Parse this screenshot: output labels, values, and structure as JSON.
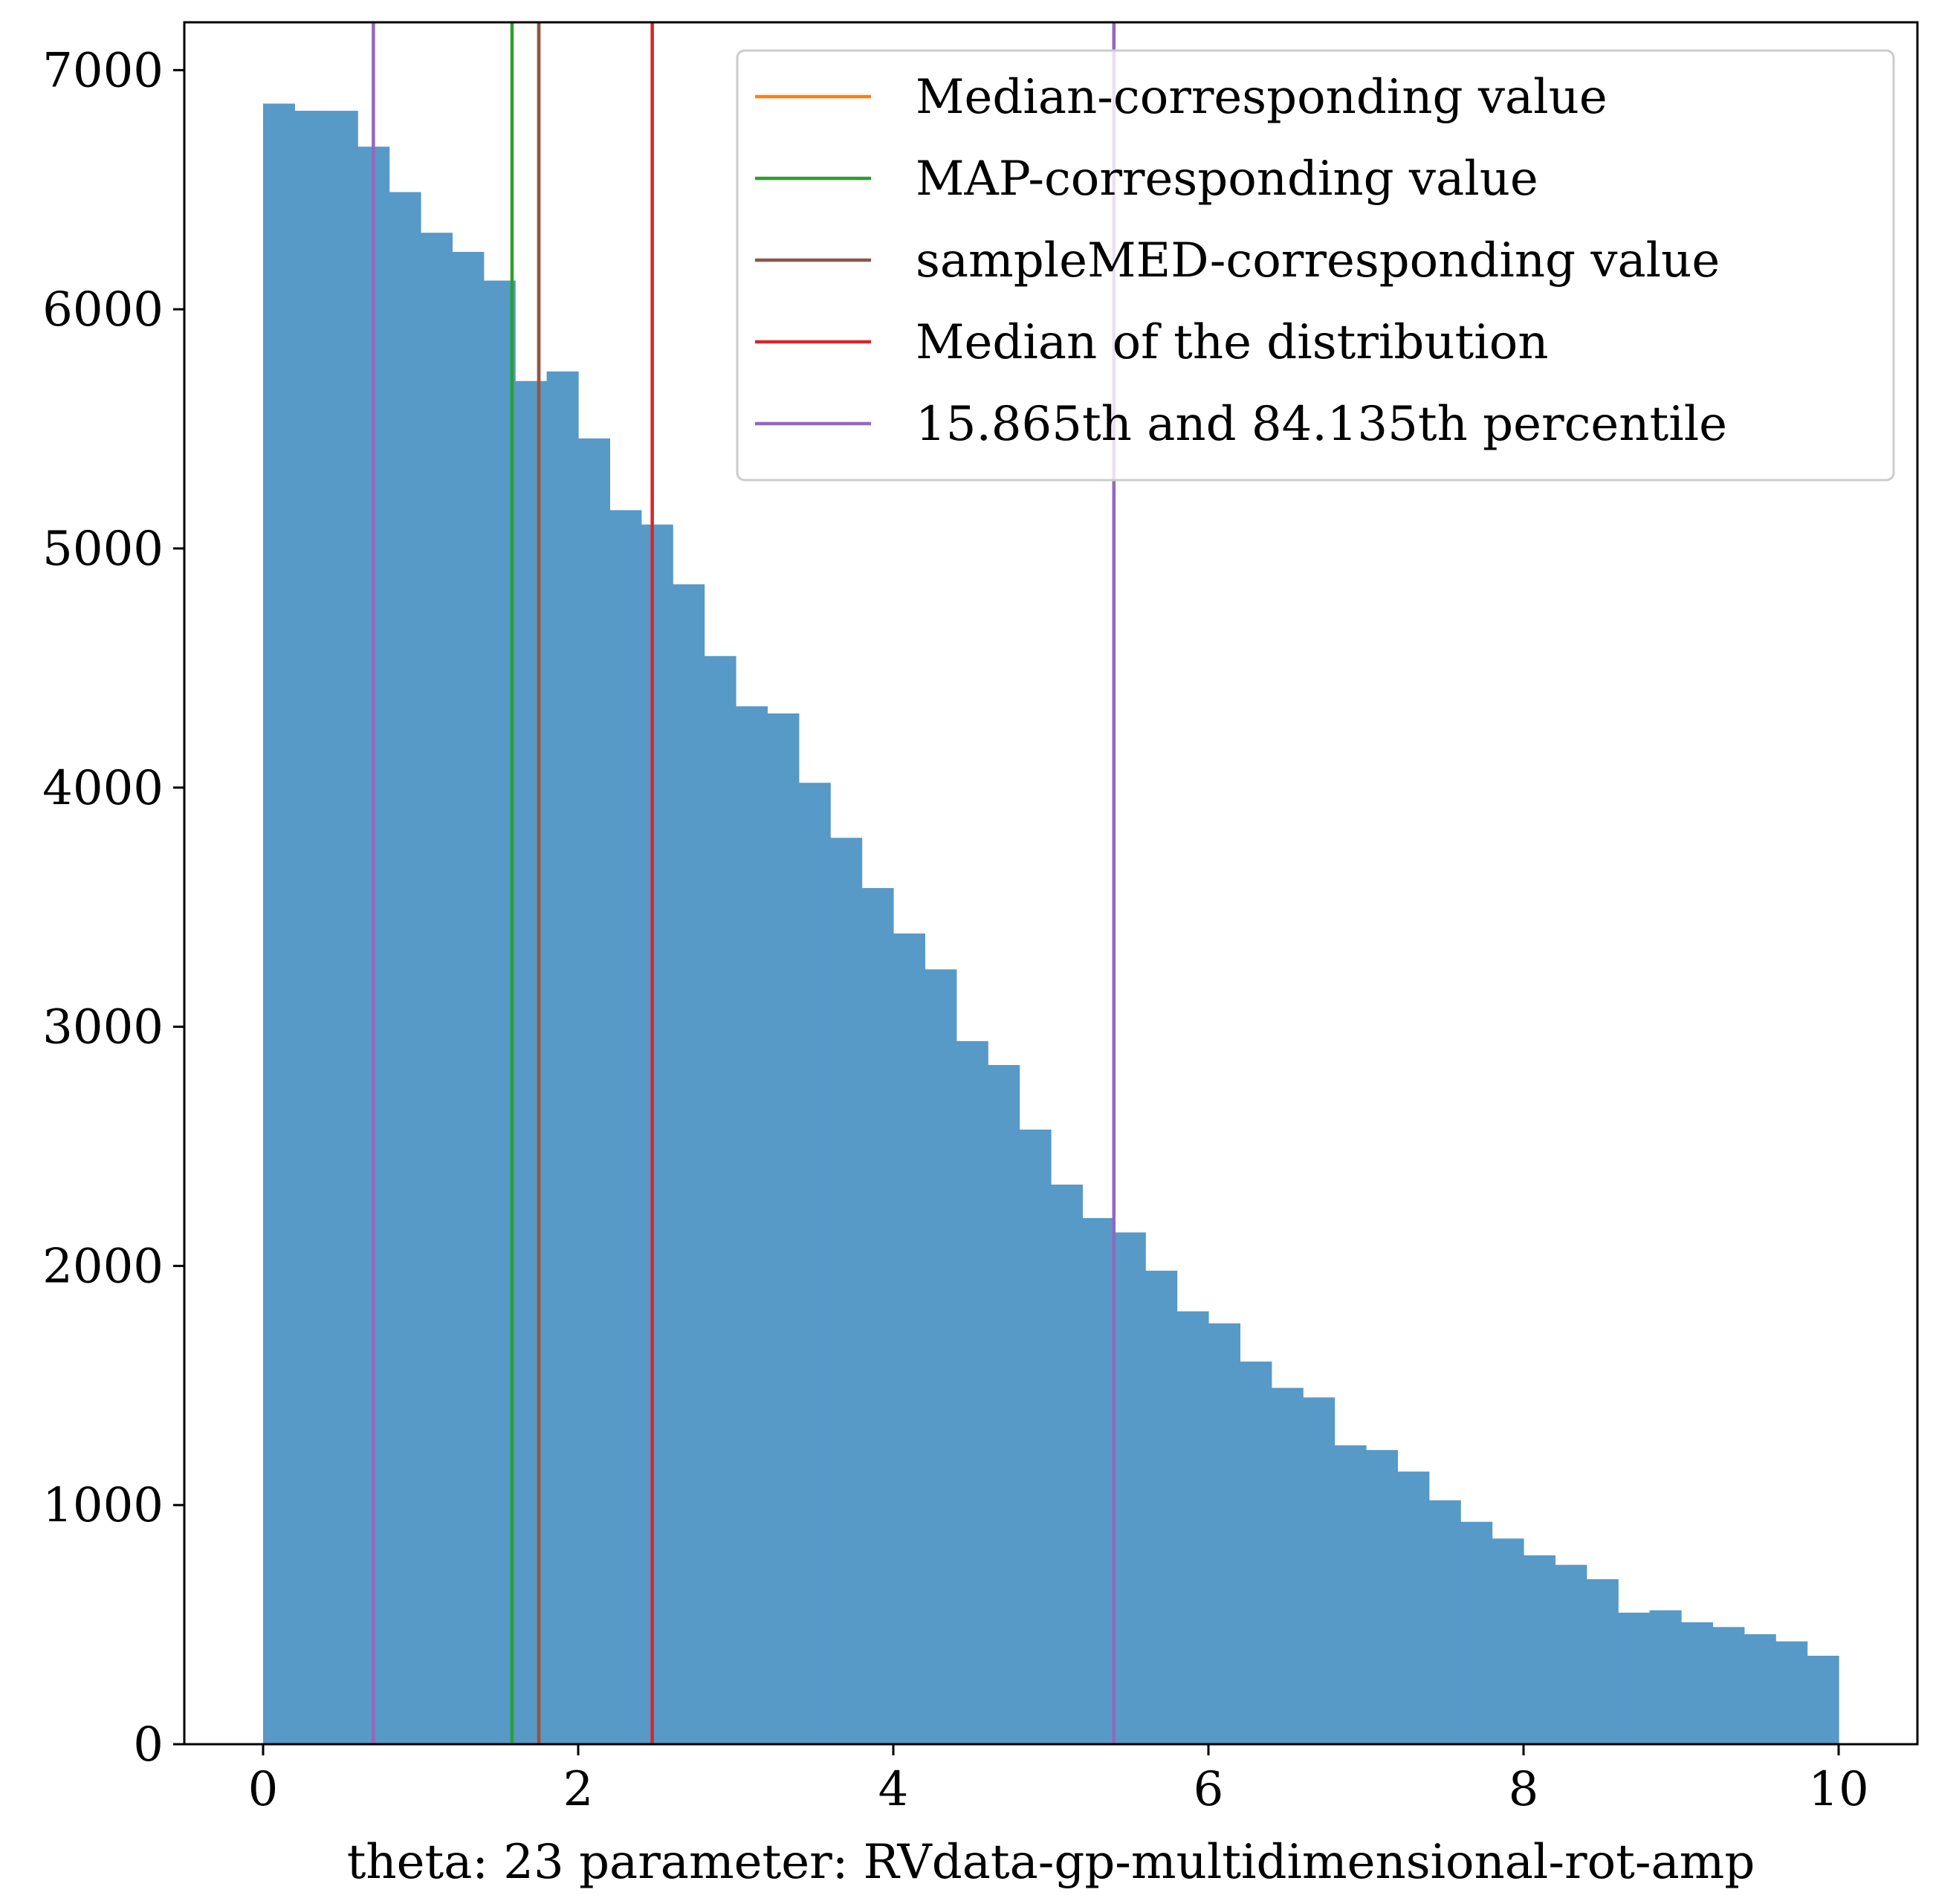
{
  "chart_data": {
    "type": "bar",
    "bin_width": 0.2,
    "x": [
      0.0,
      0.2,
      0.4,
      0.6,
      0.8,
      1.0,
      1.2,
      1.4,
      1.6,
      1.8,
      2.0,
      2.2,
      2.4,
      2.6,
      2.8,
      3.0,
      3.2,
      3.4,
      3.6,
      3.8,
      4.0,
      4.2,
      4.4,
      4.6,
      4.8,
      5.0,
      5.2,
      5.4,
      5.6,
      5.8,
      6.0,
      6.2,
      6.4,
      6.6,
      6.8,
      7.0,
      7.2,
      7.4,
      7.6,
      7.8,
      8.0,
      8.2,
      8.4,
      8.6,
      8.8,
      9.0,
      9.2,
      9.4,
      9.6,
      9.8
    ],
    "values": [
      6860,
      6830,
      6830,
      6680,
      6490,
      6320,
      6240,
      6120,
      5700,
      5740,
      5460,
      5160,
      5100,
      4850,
      4550,
      4340,
      4310,
      4020,
      3790,
      3580,
      3390,
      3240,
      2940,
      2840,
      2570,
      2340,
      2200,
      2140,
      1980,
      1810,
      1760,
      1600,
      1490,
      1450,
      1250,
      1230,
      1140,
      1020,
      930,
      860,
      790,
      750,
      690,
      550,
      560,
      510,
      490,
      460,
      430,
      370
    ],
    "xlabel": "theta: 23 parameter: RVdata-gp-multidimensional-rot-amp",
    "ylabel": "",
    "xlim": [
      -0.5,
      10.5
    ],
    "ylim": [
      0,
      7200
    ],
    "xticks": [
      0,
      2,
      4,
      6,
      8,
      10
    ],
    "yticks": [
      0,
      1000,
      2000,
      3000,
      4000,
      5000,
      6000,
      7000
    ],
    "grid": false,
    "bar_color": "#5799c7",
    "lines": [
      {
        "name": "Median-corresponding value",
        "x": [
          1.75
        ],
        "color": "#ff7f0e"
      },
      {
        "name": "MAP-corresponding value",
        "x": [
          1.58
        ],
        "color": "#2ca02c"
      },
      {
        "name": "sampleMED-corresponding value",
        "x": [
          1.75
        ],
        "color": "#8c564b"
      },
      {
        "name": "Median of the distribution",
        "x": [
          2.47
        ],
        "color": "#d62728"
      },
      {
        "name": "15.865th and 84.135th percentile",
        "x": [
          0.7,
          5.4
        ],
        "color": "#9467bd"
      }
    ],
    "legend_position": "top-right"
  }
}
